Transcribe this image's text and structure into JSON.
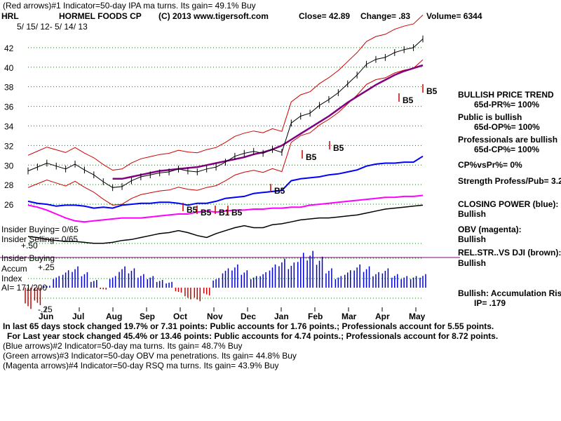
{
  "header": {
    "line1": "(Red arrows)#1 Indicator=50-day IPA ma turns. Its gain= 49.1% Buy",
    "ticker": "HRL",
    "company": "HORMEL FOODS CP",
    "copyright": "(C) 2013 www.tigersoft.com",
    "close": "Close=  42.89",
    "change": "Change= .83",
    "volume": "Volume= 6344",
    "date_range": "5/ 15/ 12-  5/ 14/ 13"
  },
  "right_panel": {
    "trend_title": "BULLISH PRICE TREND",
    "pr": "65d-PR%= 100%",
    "public_title": "Public is bullish",
    "op": "65d-OP%= 100%",
    "prof_title": "Professionals are bullish",
    "cp": "65d-CP%= 100%",
    "cpvspr": "CP%vsPr%=  0%",
    "strength": "Strength Profess/Pub= 3.2",
    "closing_power": "CLOSING POWER (blue):",
    "closing_power_val": "Bullish",
    "obv": "OBV (magenta):",
    "obv_val": "Bullish",
    "relstr": "REL.STR..VS DJI (brown):",
    "relstr_val": "Bullish",
    "accum_risk": "Bullish: Accumulation Risi",
    "ip": "IP=  .179"
  },
  "left_labels": {
    "insider_buying": "Insider Buying= 0/65",
    "insider_selling": "Insider Selling= 0/65",
    "insider_buying_line": "Insider Buying",
    "accum": "Accum",
    "index": "Index",
    "ai": "AI= 171/200",
    "plus50": "+.50",
    "plus25": "+.25",
    "minus25": "-.25"
  },
  "footer": {
    "line1": "In last 65 days stock changed  19.7% or  7.31 points:  Public accounts for  1.76 points.;  Professionals account for  5.55 points.",
    "line2": "For Last year stock changed  45.4% or 13.46 points:  Public accounts for  4.74 points.;  Professionals account for  8.72 points.",
    "line3": "(Blue arrows)#2 Indicator=50-day ma turns. Its gain= 48.7% Buy",
    "line4": "(Green arrows)#3 Indicator=50-day OBV ma penetrations. Its gain= 44.8% Buy",
    "line5": "(Magenta arrows)#4 Indicator=50-day RSQ ma turns. Its gain= 43.9% Buy"
  },
  "signal_labels": [
    "B5",
    "B5",
    "B1",
    "B5",
    "B5",
    "B5",
    "B5",
    "B5",
    "B5"
  ],
  "colors": {
    "price": "#000000",
    "band": "#cc0000",
    "ma": "#800080",
    "closing_power": "#0000ff",
    "obv": "#ff00ff",
    "accum": "#0000cc",
    "accum_neg": "#cc0000",
    "grid": "#008000"
  },
  "chart_data": {
    "type": "line",
    "title": "HORMEL FOODS CP",
    "x_labels": [
      "Jun",
      "Jul",
      "Aug",
      "Sep",
      "Oct",
      "Nov",
      "Dec",
      "Jan",
      "Feb",
      "Mar",
      "Apr",
      "May"
    ],
    "y_ticks": [
      26,
      28,
      30,
      32,
      34,
      36,
      38,
      40,
      42
    ],
    "ylim": [
      25,
      44
    ],
    "price_close": [
      29.4,
      29.8,
      30.2,
      29.9,
      29.6,
      30.1,
      29.5,
      29.0,
      28.3,
      27.7,
      27.8,
      28.4,
      28.8,
      29.0,
      29.2,
      29.3,
      29.6,
      29.4,
      29.3,
      29.6,
      29.8,
      30.3,
      30.9,
      31.2,
      31.4,
      31.2,
      31.6,
      31.3,
      34.3,
      35.0,
      35.3,
      36.1,
      36.7,
      37.4,
      38.3,
      39.2,
      40.3,
      40.8,
      41.0,
      41.5,
      41.8,
      42.0,
      42.89
    ],
    "ma50": [
      null,
      null,
      null,
      null,
      null,
      null,
      null,
      null,
      null,
      28.6,
      28.6,
      28.8,
      29.0,
      29.2,
      29.4,
      29.5,
      29.6,
      29.7,
      29.8,
      30.0,
      30.2,
      30.4,
      30.6,
      30.8,
      31.1,
      31.3,
      31.6,
      32.0,
      32.6,
      33.2,
      33.8,
      34.4,
      35.0,
      35.7,
      36.4,
      37.0,
      37.6,
      38.2,
      38.7,
      39.2,
      39.6,
      39.9,
      40.2
    ],
    "closing_power": [
      26.3,
      26.1,
      26.0,
      25.8,
      25.9,
      25.9,
      25.8,
      25.6,
      25.7,
      25.6,
      25.9,
      26.0,
      26.1,
      26.1,
      26.2,
      26.2,
      26.1,
      25.9,
      26.1,
      26.1,
      26.3,
      26.6,
      26.7,
      26.8,
      27.1,
      27.2,
      27.3,
      27.4,
      28.4,
      28.6,
      28.7,
      28.8,
      29.0,
      29.1,
      29.3,
      29.5,
      29.9,
      30.1,
      30.2,
      30.2,
      30.3,
      30.3,
      30.9
    ],
    "obv": [
      25.9,
      25.7,
      25.4,
      25.0,
      24.6,
      24.3,
      24.2,
      24.3,
      24.4,
      24.5,
      24.6,
      24.6,
      24.6,
      24.7,
      24.8,
      24.9,
      25.0,
      25.0,
      25.2,
      25.3,
      25.2,
      25.3,
      25.4,
      25.4,
      25.5,
      25.5,
      25.6,
      25.6,
      25.7,
      25.7,
      25.9,
      26.0,
      26.1,
      26.2,
      26.3,
      26.4,
      26.5,
      26.6,
      26.7,
      26.7,
      26.8,
      26.8,
      26.9
    ],
    "rel_strength": [
      22.7,
      22.6,
      22.4,
      22.3,
      22.2,
      22.2,
      22.1,
      22.0,
      22.0,
      22.1,
      22.3,
      22.4,
      22.6,
      22.8,
      23.0,
      23.1,
      23.3,
      23.1,
      22.8,
      22.6,
      23.0,
      23.3,
      23.6,
      23.8,
      23.6,
      23.6,
      23.9,
      24.0,
      24.2,
      24.4,
      24.5,
      24.6,
      24.6,
      24.7,
      24.8,
      24.9,
      25.1,
      25.3,
      25.5,
      25.6,
      25.7,
      25.8,
      25.9
    ],
    "accum_index": [
      -0.22,
      -0.18,
      0.02,
      0.12,
      0.18,
      0.22,
      0.16,
      0.08,
      -0.02,
      0.12,
      0.22,
      0.2,
      0.14,
      0.12,
      0.08,
      0.06,
      -0.05,
      -0.12,
      -0.14,
      -0.08,
      0.1,
      0.2,
      0.24,
      0.18,
      0.12,
      0.16,
      0.24,
      0.3,
      0.26,
      0.36,
      0.38,
      0.32,
      0.2,
      0.12,
      0.18,
      0.24,
      0.22,
      0.16,
      0.2,
      0.14,
      0.12,
      0.12,
      0.14
    ]
  }
}
